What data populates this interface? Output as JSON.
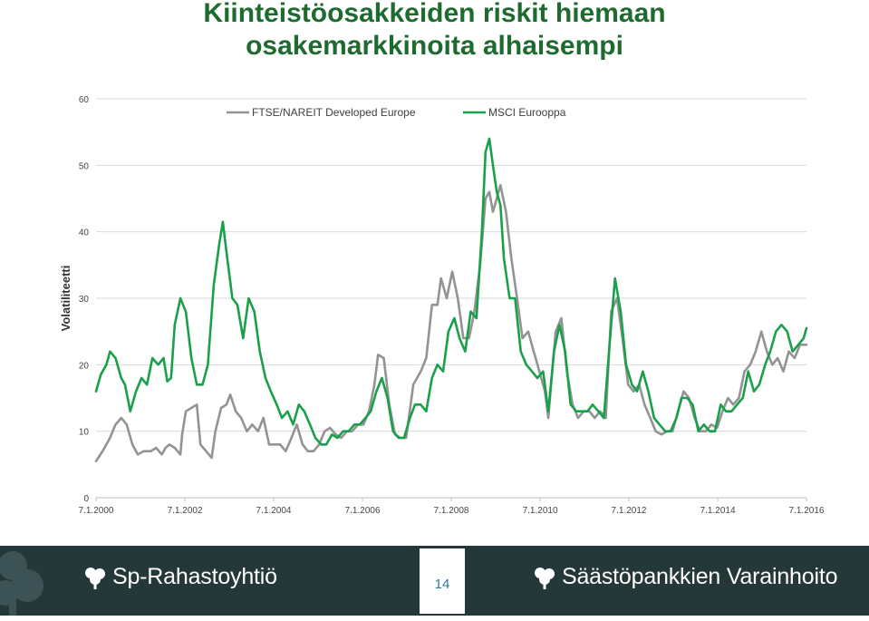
{
  "title": {
    "line1": "Kiinteistöosakkeiden riskit hiemaan",
    "line2": "osakemarkkinoita alhaisempi"
  },
  "footer": {
    "left_brand": "Sp-Rahastoyhtiö",
    "right_brand": "Säästöpankkien Varainhoito",
    "page_number": "14",
    "logo_icon": "tree-icon"
  },
  "colors": {
    "title": "#1e6b30",
    "footer_bg": "#24383a",
    "series_ftse": "#939393",
    "series_msci": "#1aa04a"
  },
  "chart_data": {
    "type": "line",
    "title": "",
    "xlabel": "",
    "ylabel": "Volatiliteetti",
    "ylim": [
      0,
      60
    ],
    "yticks": [
      "0",
      "10",
      "20",
      "30",
      "40",
      "50",
      "60"
    ],
    "xlim": [
      "2000-01-07",
      "2016-01-07"
    ],
    "xticks": [
      "7.1.2000",
      "7.1.2002",
      "7.1.2004",
      "7.1.2006",
      "7.1.2008",
      "7.1.2010",
      "7.1.2012",
      "7.1.2014",
      "7.1.2016"
    ],
    "grid": "horizontal",
    "legend": "top",
    "series": [
      {
        "name": "FTSE/NAREIT Developed Europe",
        "color": "#939393",
        "points": [
          [
            "2000-01-07",
            5.5
          ],
          [
            "2000-03-01",
            7
          ],
          [
            "2000-05-01",
            9
          ],
          [
            "2000-06-15",
            11
          ],
          [
            "2000-08-01",
            12
          ],
          [
            "2000-09-15",
            11
          ],
          [
            "2000-11-01",
            8
          ],
          [
            "2000-12-15",
            6.5
          ],
          [
            "2001-02-01",
            7
          ],
          [
            "2001-04-01",
            7
          ],
          [
            "2001-05-15",
            7.5
          ],
          [
            "2001-07-01",
            6.5
          ],
          [
            "2001-08-01",
            7.5
          ],
          [
            "2001-09-01",
            8
          ],
          [
            "2001-10-15",
            7.5
          ],
          [
            "2001-12-01",
            6.5
          ],
          [
            "2001-12-15",
            9.5
          ],
          [
            "2002-01-15",
            13
          ],
          [
            "2002-03-01",
            13.5
          ],
          [
            "2002-04-15",
            14
          ],
          [
            "2002-05-15",
            8
          ],
          [
            "2002-07-01",
            7
          ],
          [
            "2002-08-15",
            6
          ],
          [
            "2002-09-15",
            10
          ],
          [
            "2002-11-01",
            13.5
          ],
          [
            "2002-12-15",
            14
          ],
          [
            "2003-01-15",
            15.5
          ],
          [
            "2003-03-01",
            13
          ],
          [
            "2003-04-15",
            12
          ],
          [
            "2003-06-01",
            10
          ],
          [
            "2003-07-15",
            11
          ],
          [
            "2003-09-01",
            10
          ],
          [
            "2003-10-15",
            12
          ],
          [
            "2003-12-01",
            8
          ],
          [
            "2004-01-15",
            8
          ],
          [
            "2004-03-01",
            8
          ],
          [
            "2004-04-15",
            7
          ],
          [
            "2004-06-01",
            9
          ],
          [
            "2004-07-15",
            11
          ],
          [
            "2004-09-01",
            8
          ],
          [
            "2004-10-15",
            7
          ],
          [
            "2004-12-01",
            7
          ],
          [
            "2005-01-15",
            8
          ],
          [
            "2005-03-01",
            10
          ],
          [
            "2005-04-15",
            10.5
          ],
          [
            "2005-06-01",
            9.5
          ],
          [
            "2005-07-15",
            9
          ],
          [
            "2005-09-01",
            10
          ],
          [
            "2005-10-15",
            10
          ],
          [
            "2005-12-01",
            11
          ],
          [
            "2006-01-15",
            11
          ],
          [
            "2006-03-01",
            13
          ],
          [
            "2006-04-15",
            17
          ],
          [
            "2006-05-15",
            21.5
          ],
          [
            "2006-07-01",
            21
          ],
          [
            "2006-08-15",
            14
          ],
          [
            "2006-10-01",
            9.5
          ],
          [
            "2006-11-15",
            9
          ],
          [
            "2007-01-01",
            9
          ],
          [
            "2007-03-01",
            17
          ],
          [
            "2007-05-01",
            19
          ],
          [
            "2007-06-15",
            21
          ],
          [
            "2007-08-01",
            29
          ],
          [
            "2007-09-15",
            29
          ],
          [
            "2007-10-15",
            33
          ],
          [
            "2007-12-01",
            30
          ],
          [
            "2008-01-15",
            34
          ],
          [
            "2008-03-01",
            30
          ],
          [
            "2008-04-15",
            24
          ],
          [
            "2008-06-01",
            24
          ],
          [
            "2008-07-15",
            28
          ],
          [
            "2008-09-01",
            35
          ],
          [
            "2008-10-15",
            45
          ],
          [
            "2008-11-15",
            46
          ],
          [
            "2008-12-15",
            43
          ],
          [
            "2009-01-15",
            45
          ],
          [
            "2009-02-15",
            47
          ],
          [
            "2009-04-01",
            43
          ],
          [
            "2009-05-15",
            36
          ],
          [
            "2009-07-01",
            30
          ],
          [
            "2009-08-15",
            24
          ],
          [
            "2009-10-01",
            25
          ],
          [
            "2009-11-15",
            22
          ],
          [
            "2010-01-01",
            19
          ],
          [
            "2010-02-15",
            16
          ],
          [
            "2010-03-15",
            12
          ],
          [
            "2010-05-15",
            25
          ],
          [
            "2010-07-01",
            27
          ],
          [
            "2010-08-15",
            19
          ],
          [
            "2010-10-01",
            14
          ],
          [
            "2010-11-15",
            12
          ],
          [
            "2011-01-01",
            13
          ],
          [
            "2011-02-15",
            13
          ],
          [
            "2011-04-01",
            12
          ],
          [
            "2011-05-15",
            13
          ],
          [
            "2011-07-01",
            12
          ],
          [
            "2011-08-15",
            28
          ],
          [
            "2011-10-01",
            30
          ],
          [
            "2011-11-15",
            24
          ],
          [
            "2012-01-01",
            17
          ],
          [
            "2012-02-15",
            16
          ],
          [
            "2012-04-01",
            17
          ],
          [
            "2012-05-15",
            14
          ],
          [
            "2012-07-01",
            12
          ],
          [
            "2012-08-15",
            10
          ],
          [
            "2012-10-01",
            9.5
          ],
          [
            "2012-11-15",
            10
          ],
          [
            "2013-01-01",
            10
          ],
          [
            "2013-02-15",
            13
          ],
          [
            "2013-04-01",
            16
          ],
          [
            "2013-05-15",
            15
          ],
          [
            "2013-07-01",
            12
          ],
          [
            "2013-08-15",
            10
          ],
          [
            "2013-10-01",
            10
          ],
          [
            "2013-11-15",
            11
          ],
          [
            "2014-01-01",
            10.5
          ],
          [
            "2014-02-15",
            13
          ],
          [
            "2014-04-01",
            15
          ],
          [
            "2014-05-15",
            14
          ],
          [
            "2014-07-01",
            15
          ],
          [
            "2014-08-15",
            19
          ],
          [
            "2014-10-01",
            20
          ],
          [
            "2014-11-15",
            22
          ],
          [
            "2015-01-01",
            25
          ],
          [
            "2015-02-15",
            22
          ],
          [
            "2015-04-01",
            20
          ],
          [
            "2015-05-15",
            21
          ],
          [
            "2015-07-01",
            19
          ],
          [
            "2015-08-15",
            22
          ],
          [
            "2015-10-01",
            21
          ],
          [
            "2015-11-15",
            23
          ],
          [
            "2016-01-07",
            23
          ]
        ]
      },
      {
        "name": "MSCI Eurooppa",
        "color": "#1aa04a",
        "points": [
          [
            "2000-01-07",
            16
          ],
          [
            "2000-02-15",
            18.5
          ],
          [
            "2000-04-01",
            20
          ],
          [
            "2000-05-01",
            22
          ],
          [
            "2000-06-15",
            21
          ],
          [
            "2000-08-01",
            18
          ],
          [
            "2000-09-01",
            17
          ],
          [
            "2000-10-15",
            13
          ],
          [
            "2000-12-01",
            16
          ],
          [
            "2001-01-15",
            18
          ],
          [
            "2001-03-01",
            17
          ],
          [
            "2001-04-15",
            21
          ],
          [
            "2001-06-01",
            20
          ],
          [
            "2001-07-15",
            21
          ],
          [
            "2001-08-15",
            17.5
          ],
          [
            "2001-09-15",
            18
          ],
          [
            "2001-10-15",
            26
          ],
          [
            "2001-12-01",
            30
          ],
          [
            "2002-01-15",
            28
          ],
          [
            "2002-03-01",
            21
          ],
          [
            "2002-04-15",
            17
          ],
          [
            "2002-06-01",
            17
          ],
          [
            "2002-07-15",
            20
          ],
          [
            "2002-09-01",
            32
          ],
          [
            "2002-10-15",
            38
          ],
          [
            "2002-11-15",
            41.5
          ],
          [
            "2002-12-15",
            37
          ],
          [
            "2003-02-01",
            30
          ],
          [
            "2003-03-15",
            29
          ],
          [
            "2003-05-01",
            24
          ],
          [
            "2003-06-15",
            30
          ],
          [
            "2003-08-01",
            28
          ],
          [
            "2003-09-15",
            22
          ],
          [
            "2003-11-01",
            18
          ],
          [
            "2003-12-15",
            16
          ],
          [
            "2004-02-01",
            14
          ],
          [
            "2004-03-15",
            12
          ],
          [
            "2004-05-01",
            13
          ],
          [
            "2004-06-15",
            11
          ],
          [
            "2004-08-01",
            14
          ],
          [
            "2004-09-15",
            13
          ],
          [
            "2004-11-01",
            11
          ],
          [
            "2004-12-15",
            9
          ],
          [
            "2005-02-01",
            8
          ],
          [
            "2005-03-15",
            8
          ],
          [
            "2005-05-01",
            9.5
          ],
          [
            "2005-06-15",
            9
          ],
          [
            "2005-08-01",
            10
          ],
          [
            "2005-09-15",
            10
          ],
          [
            "2005-11-01",
            11
          ],
          [
            "2005-12-15",
            11
          ],
          [
            "2006-02-01",
            12
          ],
          [
            "2006-03-15",
            13
          ],
          [
            "2006-05-01",
            16
          ],
          [
            "2006-06-15",
            18
          ],
          [
            "2006-08-01",
            15
          ],
          [
            "2006-09-15",
            10
          ],
          [
            "2006-11-01",
            9
          ],
          [
            "2006-12-15",
            9
          ],
          [
            "2007-02-01",
            12
          ],
          [
            "2007-03-15",
            14
          ],
          [
            "2007-05-01",
            14
          ],
          [
            "2007-06-15",
            13
          ],
          [
            "2007-08-01",
            18
          ],
          [
            "2007-09-15",
            20
          ],
          [
            "2007-11-01",
            19
          ],
          [
            "2007-12-15",
            25
          ],
          [
            "2008-02-01",
            27
          ],
          [
            "2008-03-15",
            24
          ],
          [
            "2008-05-01",
            22
          ],
          [
            "2008-06-15",
            28
          ],
          [
            "2008-08-01",
            27
          ],
          [
            "2008-09-15",
            40
          ],
          [
            "2008-10-15",
            52
          ],
          [
            "2008-11-15",
            54
          ],
          [
            "2008-12-15",
            50
          ],
          [
            "2009-01-15",
            46
          ],
          [
            "2009-02-15",
            44
          ],
          [
            "2009-03-15",
            36
          ],
          [
            "2009-05-01",
            30
          ],
          [
            "2009-06-15",
            30
          ],
          [
            "2009-08-01",
            22
          ],
          [
            "2009-09-15",
            20
          ],
          [
            "2009-11-01",
            19
          ],
          [
            "2009-12-15",
            18
          ],
          [
            "2010-02-01",
            19
          ],
          [
            "2010-03-15",
            13
          ],
          [
            "2010-05-01",
            22
          ],
          [
            "2010-06-15",
            26
          ],
          [
            "2010-08-01",
            22
          ],
          [
            "2010-09-15",
            14
          ],
          [
            "2010-11-01",
            13
          ],
          [
            "2010-12-15",
            13
          ],
          [
            "2011-02-01",
            13
          ],
          [
            "2011-03-15",
            14
          ],
          [
            "2011-05-01",
            13
          ],
          [
            "2011-06-15",
            12
          ],
          [
            "2011-08-01",
            23
          ],
          [
            "2011-09-15",
            33
          ],
          [
            "2011-11-01",
            28
          ],
          [
            "2011-12-15",
            20
          ],
          [
            "2012-02-01",
            17
          ],
          [
            "2012-03-15",
            16
          ],
          [
            "2012-05-01",
            19
          ],
          [
            "2012-06-15",
            16
          ],
          [
            "2012-08-01",
            12
          ],
          [
            "2012-09-15",
            11
          ],
          [
            "2012-11-01",
            10
          ],
          [
            "2012-12-15",
            10
          ],
          [
            "2013-02-01",
            12
          ],
          [
            "2013-03-15",
            15
          ],
          [
            "2013-05-01",
            15
          ],
          [
            "2013-06-15",
            14
          ],
          [
            "2013-08-01",
            10
          ],
          [
            "2013-09-15",
            11
          ],
          [
            "2013-11-01",
            10
          ],
          [
            "2013-12-15",
            10
          ],
          [
            "2014-02-01",
            14
          ],
          [
            "2014-03-15",
            13
          ],
          [
            "2014-05-01",
            13
          ],
          [
            "2014-06-15",
            14
          ],
          [
            "2014-08-01",
            15
          ],
          [
            "2014-09-15",
            19
          ],
          [
            "2014-11-01",
            16
          ],
          [
            "2014-12-15",
            17
          ],
          [
            "2015-02-01",
            20
          ],
          [
            "2015-03-15",
            22
          ],
          [
            "2015-05-01",
            25
          ],
          [
            "2015-06-15",
            26
          ],
          [
            "2015-08-01",
            25
          ],
          [
            "2015-09-15",
            22
          ],
          [
            "2015-11-01",
            23
          ],
          [
            "2015-12-15",
            24
          ],
          [
            "2016-01-07",
            25.5
          ]
        ]
      }
    ]
  }
}
